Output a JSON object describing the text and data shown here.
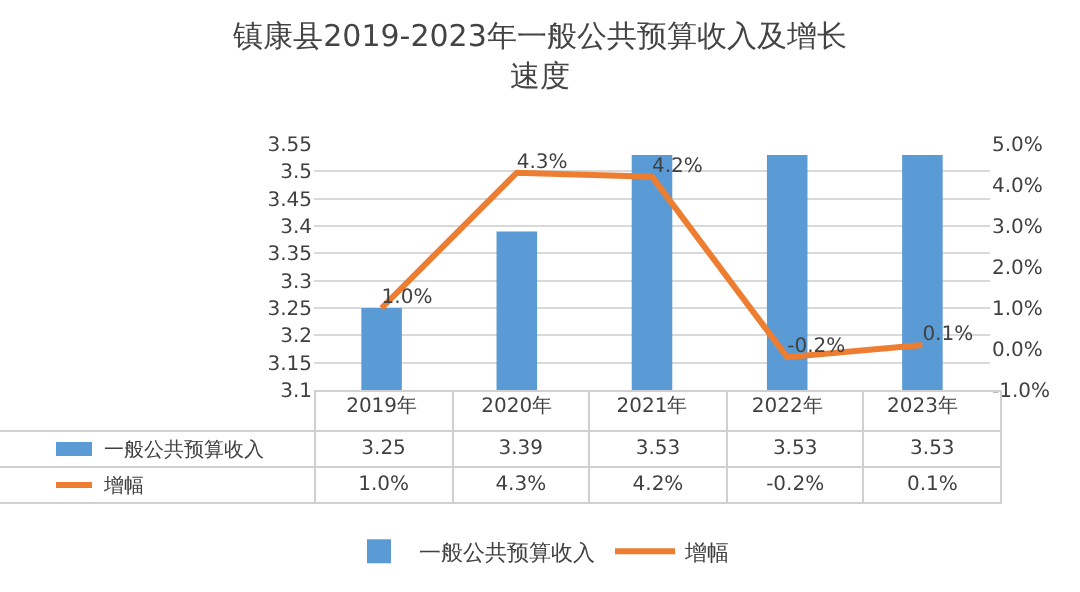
{
  "chart_data": {
    "type": "bar",
    "title": "镇康县2019-2023年一般公共预算收入及增长速度",
    "categories": [
      "2019年",
      "2020年",
      "2021年",
      "2022年",
      "2023年"
    ],
    "series": [
      {
        "name": "一般公共预算收入",
        "color": "#5b9bd5",
        "values": [
          3.25,
          3.39,
          3.53,
          3.53,
          3.53
        ],
        "value_labels": [
          "3.25",
          "3.39",
          "3.53",
          "3.53",
          "3.53"
        ]
      },
      {
        "name": "增幅",
        "type": "line",
        "axis": "y2",
        "color": "#ed7d31",
        "values": [
          1.0,
          4.3,
          4.2,
          -0.2,
          0.1
        ],
        "value_labels": [
          "1.0%",
          "4.3%",
          "4.2%",
          "-0.2%",
          "0.1%"
        ]
      }
    ],
    "ylim": [
      3.1,
      3.55
    ],
    "yticks": [
      3.1,
      3.15,
      3.2,
      3.25,
      3.3,
      3.35,
      3.4,
      3.45,
      3.5,
      3.55
    ],
    "y2lim": [
      -1,
      5
    ],
    "y2ticks": [
      {
        "value": -1,
        "label": "-1.0%"
      },
      {
        "value": 0,
        "label": "0.0%"
      },
      {
        "value": 1,
        "label": "1.0%"
      },
      {
        "value": 2,
        "label": "2.0%"
      },
      {
        "value": 3,
        "label": "3.0%"
      },
      {
        "value": 4,
        "label": "4.0%"
      },
      {
        "value": 5,
        "label": "5.0%"
      }
    ],
    "grid": "y",
    "legend": "bottom",
    "marker": "none",
    "line_style": "solid"
  }
}
